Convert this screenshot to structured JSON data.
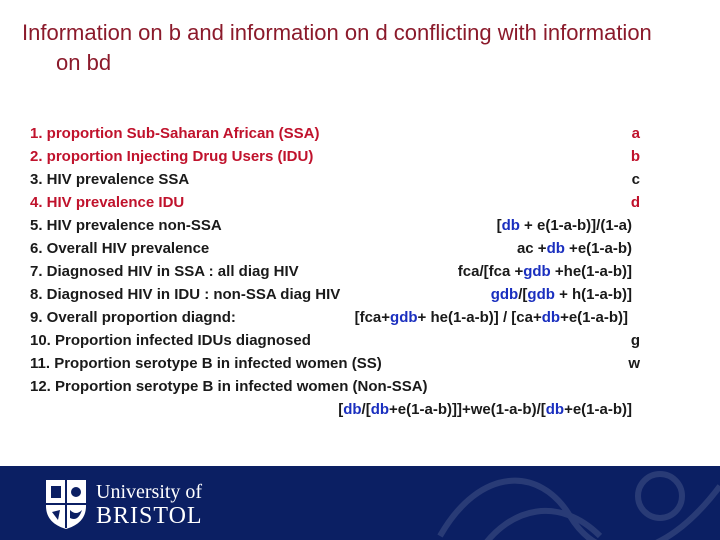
{
  "slide": {
    "title_line1": "Information on b and information on d conflicting with information",
    "title_line2": "on bd"
  },
  "items": [
    {
      "label": "1.  proportion Sub-Saharan African (SSA)",
      "value": "a",
      "color": "red"
    },
    {
      "label": "2.  proportion Injecting Drug Users (IDU)",
      "value": "b",
      "color": "red"
    },
    {
      "label": "3.  HIV prevalence SSA",
      "value": "c",
      "color": "black"
    },
    {
      "label": "4.  HIV prevalence IDU",
      "value": "d",
      "color": "red"
    },
    {
      "label": "5.  HIV prevalence non-SSA",
      "value_parts": [
        "[",
        "db",
        " + e(1-a-b)]/(1-a)"
      ],
      "color": "black"
    },
    {
      "label": "6. Overall HIV prevalence",
      "value_parts": [
        "ac +",
        "db",
        " +e(1-a-b)"
      ],
      "color": "black"
    },
    {
      "label": "7. Diagnosed HIV in SSA :  all diag HIV",
      "value_parts": [
        "fca/[fca +",
        "gdb",
        " +he(1-a-b)]"
      ],
      "color": "black"
    },
    {
      "label": "8. Diagnosed HIV in IDU : non-SSA diag HIV",
      "value_parts": [
        "gdb",
        "/[",
        "gdb",
        " + h(1-a-b)]"
      ],
      "color": "black"
    },
    {
      "label": "9. Overall proportion diagnd:",
      "value_parts": [
        "[fca+",
        "gdb",
        "+ he(1-a-b)] / [ca+",
        "db",
        "+e(1-a-b)]"
      ],
      "color": "black"
    },
    {
      "label": "10. Proportion infected IDUs diagnosed",
      "value": "g",
      "color": "black"
    },
    {
      "label": "11. Proportion serotype B in infected women (SS)",
      "value": "w",
      "color": "black"
    },
    {
      "label": "12. Proportion serotype B in infected women (Non-SSA)",
      "value": "",
      "color": "black"
    },
    {
      "label": "",
      "value_parts": [
        "[",
        "db",
        "/[",
        "db",
        "+e(1-a-b)]]+we(1-a-b)/[",
        "db",
        "+e(1-a-b)]"
      ],
      "color": "black"
    }
  ],
  "footer": {
    "university_line1": "University of",
    "university_line2": "BRISTOL",
    "background_color": "#0b1f63"
  },
  "colors": {
    "title": "#8b1a2b",
    "red": "#c0122c",
    "blue": "#1a2fbf",
    "black": "#1a1a1a"
  }
}
